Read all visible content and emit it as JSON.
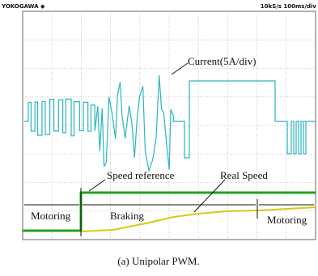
{
  "header": {
    "brand": "YOKOGAWA ◆",
    "settings": "10kS/s 100ms/div"
  },
  "labels": {
    "current": "Current(5A/div)",
    "speed_reference": "Speed reference",
    "real_speed": "Real Speed",
    "motoring_left": "Motoring",
    "braking": "Braking",
    "motoring_right": "Motoring"
  },
  "caption": "(a) Unipolar PWM."
}
